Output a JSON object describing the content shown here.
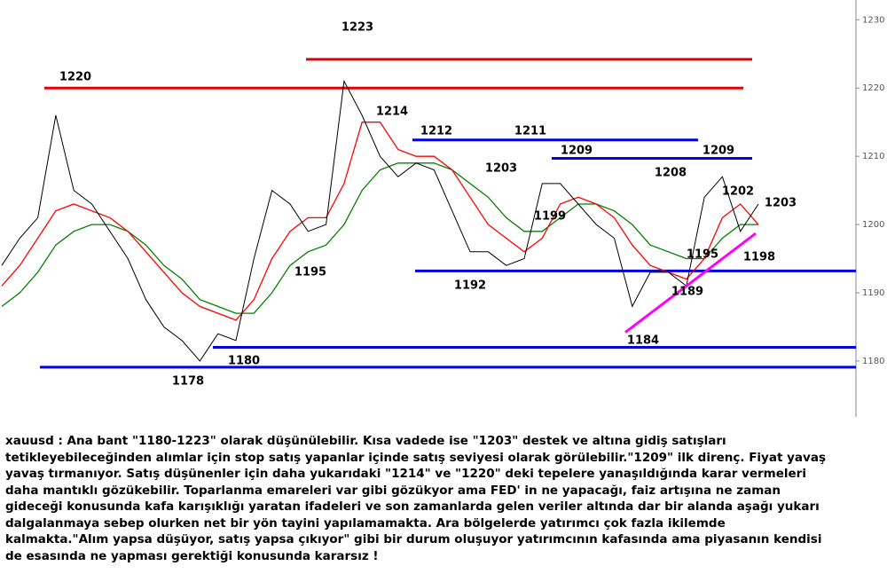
{
  "chart_data": {
    "type": "line",
    "categories": [
      null,
      null,
      null,
      null,
      null,
      null,
      null,
      null,
      null,
      null,
      null,
      null,
      null,
      null,
      null,
      null,
      null,
      null,
      null,
      null,
      null,
      null,
      null,
      null,
      null,
      null,
      null,
      null,
      null,
      null,
      null,
      null,
      null,
      null,
      null,
      null,
      null,
      null,
      null,
      null,
      null,
      null,
      null
    ],
    "series": [
      {
        "color": "#000000",
        "values": [
          1194,
          1198,
          1201,
          1216,
          1205,
          1203,
          1199,
          1195,
          1189,
          1185,
          1183,
          1180,
          1184,
          1183,
          1195,
          1205,
          1203,
          1199,
          1200,
          1221,
          1216,
          1210,
          1207,
          1209,
          1208,
          1202,
          1196,
          1196,
          1194,
          1195,
          1206,
          1206,
          1203,
          1200,
          1198,
          1188,
          1193,
          1193,
          1191,
          1204,
          1207,
          1199,
          1203
        ]
      },
      {
        "color": "#ff0000",
        "values": [
          1191,
          1194,
          1198,
          1202,
          1203,
          1202,
          1201,
          1199,
          1196,
          1193,
          1190,
          1188,
          1187,
          1186,
          1189,
          1195,
          1199,
          1201,
          1201,
          1206,
          1215,
          1215,
          1211,
          1210,
          1210,
          1208,
          1204,
          1200,
          1198,
          1196,
          1198,
          1203,
          1204,
          1203,
          1201,
          1197,
          1194,
          1193,
          1192,
          1195,
          1201,
          1203,
          1200
        ]
      },
      {
        "color": "#008000",
        "values": [
          1188,
          1190,
          1193,
          1197,
          1199,
          1200,
          1200,
          1199,
          1197,
          1194,
          1192,
          1189,
          1188,
          1187,
          1187,
          1190,
          1194,
          1196,
          1197,
          1200,
          1205,
          1208,
          1209,
          1209,
          1209,
          1208,
          1206,
          1204,
          1201,
          1199,
          1199,
          1201,
          1203,
          1203,
          1202,
          1200,
          1197,
          1196,
          1195,
          1195,
          1198,
          1200,
          1200
        ]
      }
    ],
    "levels": [
      {
        "value": 1220.0,
        "color": "#e00000"
      },
      {
        "value": 1224.2,
        "color": "#e00000"
      },
      {
        "value": 1212.4,
        "color": "#0000e0"
      },
      {
        "value": 1209.7,
        "color": "#0000e0"
      },
      {
        "value": 1193.2,
        "color": "#0000e0"
      },
      {
        "value": 1182.0,
        "color": "#0000e0"
      },
      {
        "value": 1179.1,
        "color": "#0000e0"
      }
    ],
    "trendline": {
      "color": "#ff00ff",
      "values": [
        1184.2,
        1198.7
      ]
    },
    "annotations": [
      1220,
      1223,
      1214,
      1212,
      1211,
      1209,
      1203,
      1199,
      1195,
      1192,
      1208,
      1209,
      1202,
      1203,
      1195,
      1198,
      1189,
      1184,
      1180,
      1178
    ],
    "ylim": [
      1171.8,
      1232.9
    ],
    "yticks": [
      1180,
      1190,
      1200,
      1210,
      1220,
      1230
    ]
  },
  "note": [
    "xauusd : Ana bant \"1180-1223\" olarak düşünülebilir. Kısa vadede ise \"1203\" destek ve altına gidiş satışları",
    "tetikleyebileceğinden alımlar için stop satış yapanlar içinde satış seviyesi olarak görülebilir.\"1209\" ilk direnç. Fiyat yavaş",
    "yavaş tırmanıyor. Satış düşünenler için daha yukarıdaki \"1214\" ve \"1220\" deki tepelere yanaşıldığında karar vermeleri",
    "daha mantıklı gözükebilir. Toparlanma emareleri var gibi gözükyor ama FED' in ne yapacağı, faiz artışına ne zaman",
    "gideceği konusunda kafa karışıklığı yaratan ifadeleri ve son zamanlarda gelen veriler altında dar bir alanda aşağı yukarı",
    "dalgalanmaya sebep olurken net bir yön tayini yapılamamakta. Ara bölgelerde yatırımcı çok fazla ikilemde",
    "kalmakta.\"Alım yapsa düşüyor, satış yapsa çıkıyor\" gibi bir durum oluşuyor yatırımcının kafasında ama piyasanın kendisi",
    "de esasında ne yapması gerektiği konusunda kararsız !"
  ]
}
